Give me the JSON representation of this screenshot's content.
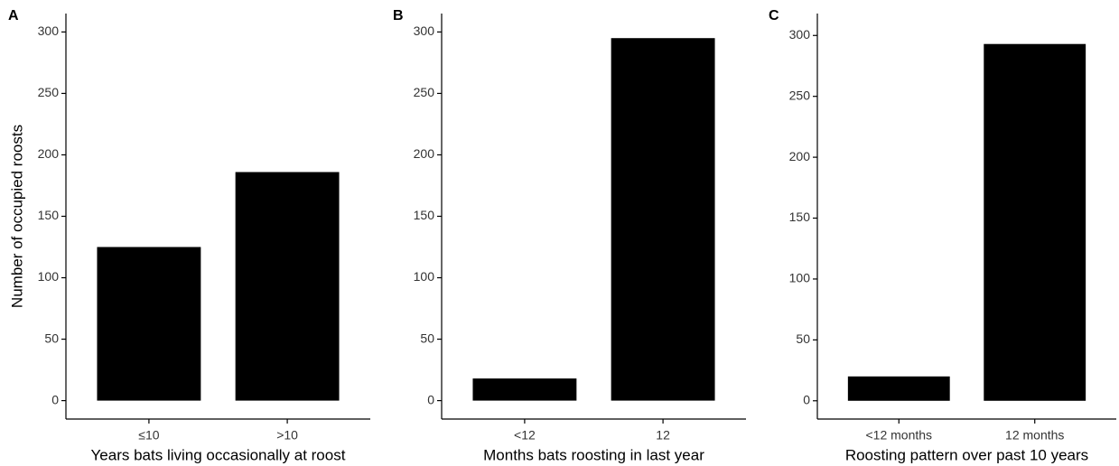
{
  "chart_data": [
    {
      "type": "bar",
      "panel_label": "A",
      "y_label": "Number of occupied roosts",
      "x_label": "Years bats living occasionally at roost",
      "categories": [
        "≤10",
        ">10"
      ],
      "values": [
        125,
        186
      ],
      "color": "#000000",
      "ylim": [
        -15,
        315
      ],
      "yticks": [
        0,
        50,
        100,
        150,
        200,
        250,
        300
      ]
    },
    {
      "type": "bar",
      "panel_label": "B",
      "x_label": "Months bats roosting in last year",
      "categories": [
        "<12",
        "12"
      ],
      "values": [
        18,
        295
      ],
      "color": "#000000",
      "ylim": [
        -15,
        315
      ],
      "yticks": [
        0,
        50,
        100,
        150,
        200,
        250,
        300
      ]
    },
    {
      "type": "bar",
      "panel_label": "C",
      "x_label": "Roosting pattern over past 10 years",
      "categories": [
        "<12 months",
        "12 months"
      ],
      "values": [
        20,
        293
      ],
      "color": "#000000",
      "ylim": [
        -15,
        318
      ],
      "yticks": [
        0,
        50,
        100,
        150,
        200,
        250,
        300
      ]
    }
  ]
}
